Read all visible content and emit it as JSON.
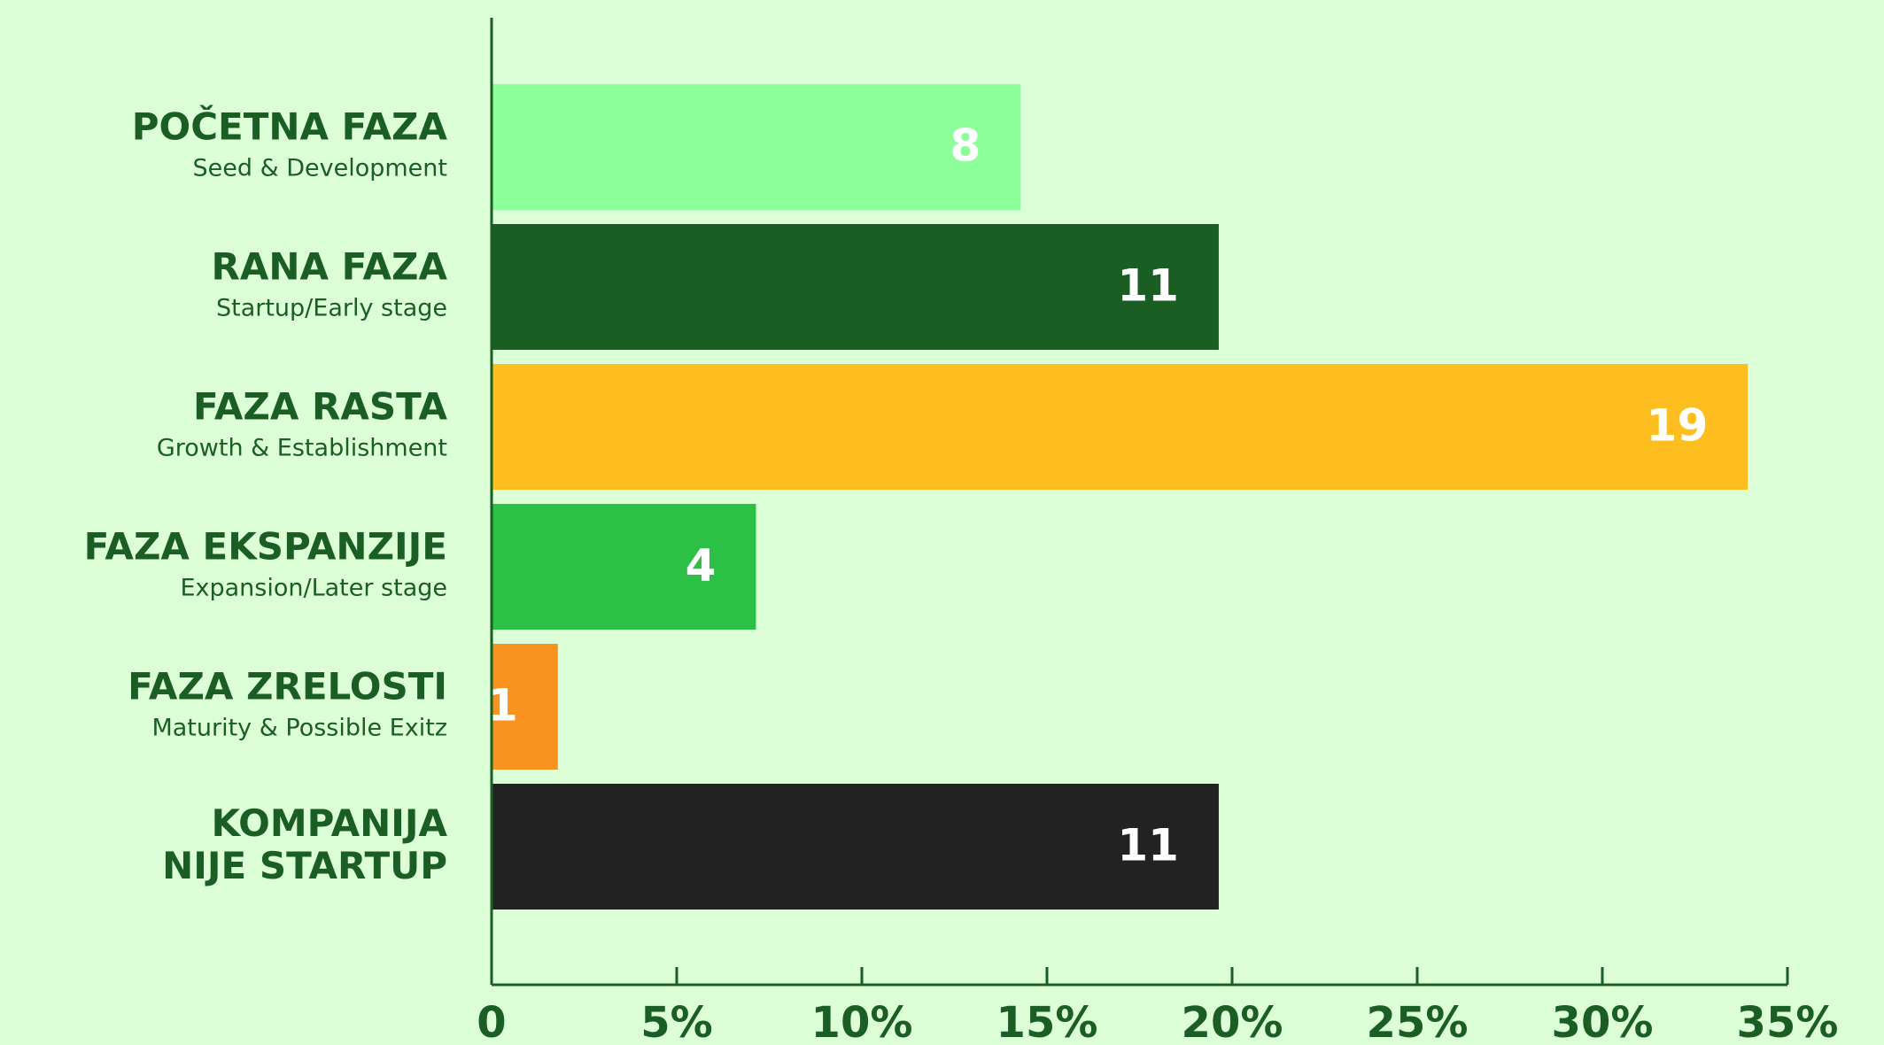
{
  "chart_data": {
    "type": "barh",
    "categories": [
      "POČETNA FAZA",
      "RANA FAZA",
      "FAZA RASTA",
      "FAZA EKSPANZIJE",
      "FAZA ZRELOSTI",
      "KOMPANIJA\nNIJE STARTUP"
    ],
    "subcategories": [
      "Seed & Development",
      "Startup/Early stage",
      "Growth & Establishment",
      "Expansion/Later stage",
      "Maturity & Possible Exitz",
      null
    ],
    "values": [
      14.29,
      19.64,
      33.93,
      7.14,
      1.79,
      19.64
    ],
    "counts": [
      8,
      11,
      19,
      4,
      1,
      11
    ],
    "colors": [
      "#8cff9a",
      "#1a5e24",
      "#ffbe20",
      "#2cc046",
      "#f7931e",
      "#222222"
    ],
    "xlim": [
      0,
      35
    ],
    "xticks": [
      0,
      {
        "value": 5,
        "label": "5%"
      },
      {
        "value": 10,
        "label": "10%"
      },
      {
        "value": 15,
        "label": "15%"
      },
      {
        "value": 20,
        "label": "20%"
      },
      {
        "value": 25,
        "label": "25%"
      },
      {
        "value": 30,
        "label": "30%"
      },
      {
        "value": 35,
        "label": "35%"
      }
    ]
  }
}
